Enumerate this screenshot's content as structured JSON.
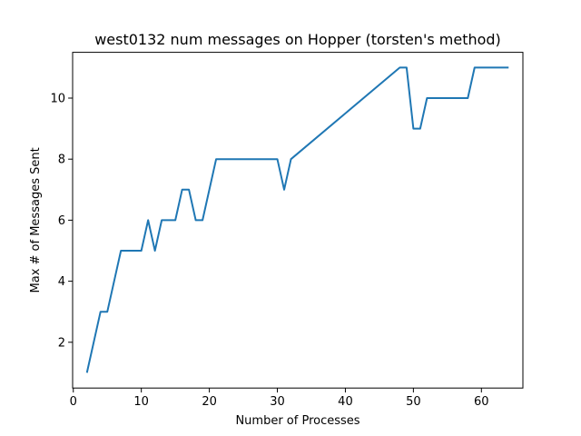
{
  "chart_data": {
    "type": "line",
    "title": "west0132 num messages on Hopper (torsten's method)",
    "xlabel": "Number of Processes",
    "ylabel": "Max # of Messages Sent",
    "xlim": [
      -0.1,
      66.1
    ],
    "ylim": [
      0.5,
      11.5
    ],
    "xticks": [
      0,
      10,
      20,
      30,
      40,
      50,
      60
    ],
    "yticks": [
      2,
      4,
      6,
      8,
      10
    ],
    "grid": false,
    "series": [
      {
        "color": "#1f77b4",
        "x": [
          2,
          4,
          5,
          7,
          8,
          9,
          10,
          11,
          12,
          13,
          14,
          15,
          16,
          17,
          18,
          19,
          21,
          22,
          30,
          31,
          32,
          48,
          49,
          50,
          51,
          52,
          58,
          59,
          60,
          64
        ],
        "y": [
          1,
          3,
          3,
          5,
          5,
          5,
          5,
          6,
          5,
          6,
          6,
          6,
          7,
          7,
          6,
          6,
          8,
          8,
          8,
          7,
          8,
          11,
          11,
          9,
          9,
          10,
          10,
          11,
          11,
          11
        ]
      }
    ]
  }
}
